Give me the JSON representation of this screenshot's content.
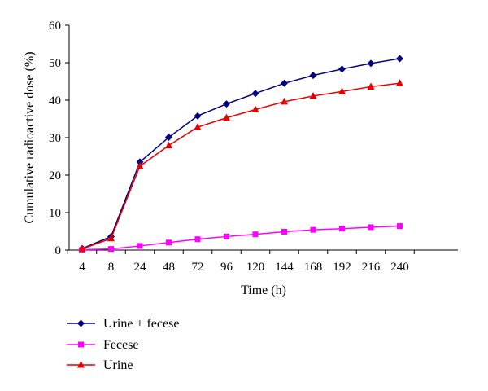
{
  "chart_data": {
    "type": "line",
    "title": "",
    "xlabel": "Time (h)",
    "ylabel": "Cumulative radioactive dose (%)",
    "categories": [
      "4",
      "8",
      "24",
      "48",
      "72",
      "96",
      "120",
      "144",
      "168",
      "192",
      "216",
      "240"
    ],
    "ylim": [
      0,
      60
    ],
    "yticks": [
      "0",
      "10",
      "20",
      "30",
      "40",
      "50",
      "60"
    ],
    "grid": false,
    "legend_position": "bottom-left",
    "series": [
      {
        "name": "Urine + fecese",
        "color": "#000080",
        "marker": "diamond",
        "values": [
          0.4,
          3.6,
          23.5,
          30.1,
          35.8,
          39.0,
          41.8,
          44.5,
          46.6,
          48.3,
          49.8,
          51.1
        ]
      },
      {
        "name": "Fecese",
        "color": "#ff00ff",
        "marker": "square",
        "values": [
          0.1,
          0.3,
          1.1,
          2.0,
          2.9,
          3.6,
          4.2,
          4.9,
          5.4,
          5.7,
          6.1,
          6.4
        ]
      },
      {
        "name": "Urine",
        "color": "#e60000",
        "marker": "triangle",
        "values": [
          0.3,
          3.1,
          22.4,
          27.9,
          32.8,
          35.3,
          37.5,
          39.6,
          41.1,
          42.3,
          43.6,
          44.5
        ]
      }
    ]
  }
}
